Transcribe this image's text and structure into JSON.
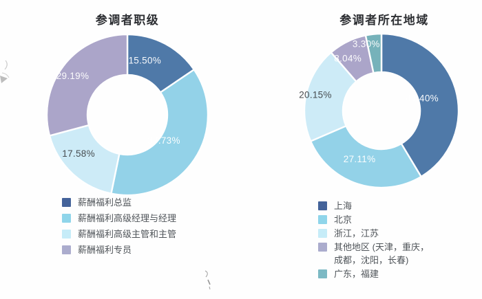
{
  "page": {
    "background": "#fefefe"
  },
  "chart_data": [
    {
      "type": "donut",
      "title": "参调者职级",
      "inner_ratio": 0.5,
      "start_angle_deg": 0,
      "direction": "clockwise",
      "legend_position": "bottom-left",
      "gap_color": "#ffffff",
      "slices": [
        {
          "label": "薪酬福利总监",
          "value": 15.5,
          "display": "15.50%",
          "color": "#4f79a8",
          "legend_color": "#44639a",
          "label_color": "#ffffff",
          "label_angle_deg": 18,
          "label_r_factor": 0.7
        },
        {
          "label": "薪酬福利高级经理与经理",
          "value": 37.73,
          "display": "37.73%",
          "color": "#93d2e8",
          "legend_color": "#8fd5ea",
          "label_color": "#ffffff",
          "label_angle_deg": 126,
          "label_r_factor": 0.56
        },
        {
          "label": "薪酬福利高级主管和主管",
          "value": 17.58,
          "display": "17.58%",
          "color": "#cdebf7",
          "legend_color": "#c6ecf8",
          "label_color": "#3f4347",
          "label_angle_deg": 231,
          "label_r_factor": 0.78
        },
        {
          "label": "薪酬福利专员",
          "value": 29.19,
          "display": "29.19%",
          "color": "#aba5c9",
          "legend_color": "#abaccd",
          "label_color": "#ffffff",
          "label_angle_deg": 305,
          "label_r_factor": 0.83
        }
      ]
    },
    {
      "type": "donut",
      "title": "参调者所在地域",
      "inner_ratio": 0.5,
      "start_angle_deg": 0,
      "direction": "clockwise",
      "legend_position": "bottom-left",
      "gap_color": "#ffffff",
      "slices": [
        {
          "label": "上海",
          "value": 41.4,
          "display": "41.40%",
          "color": "#4f79a8",
          "legend_color": "#44639a",
          "label_color": "#ffffff",
          "label_angle_deg": 74,
          "label_r_factor": 0.55
        },
        {
          "label": "北京",
          "value": 27.11,
          "display": "27.11%",
          "color": "#93d2e8",
          "legend_color": "#8fd5ea",
          "label_color": "#ffffff",
          "label_angle_deg": 204,
          "label_r_factor": 0.7
        },
        {
          "label": "浙江，江苏",
          "value": 20.15,
          "display": "20.15%",
          "color": "#cdebf7",
          "legend_color": "#c6ecf8",
          "label_color": "#3f4347",
          "label_angle_deg": 283,
          "label_r_factor": 0.88
        },
        {
          "label": "其他地区 (天津，重庆，成都，沈阳，长春)",
          "value": 8.04,
          "display": "8.04%",
          "color": "#aba5c9",
          "legend_color": "#abaccd",
          "label_color": "#ffffff",
          "label_angle_deg": 327,
          "label_r_factor": 0.8
        },
        {
          "label": "广东，福建",
          "value": 3.3,
          "display": "3.30%",
          "color": "#76b2ba",
          "legend_color": "#7cb9c4",
          "label_color": "#ffffff",
          "label_angle_deg": 347,
          "label_r_factor": 0.88
        }
      ]
    }
  ]
}
